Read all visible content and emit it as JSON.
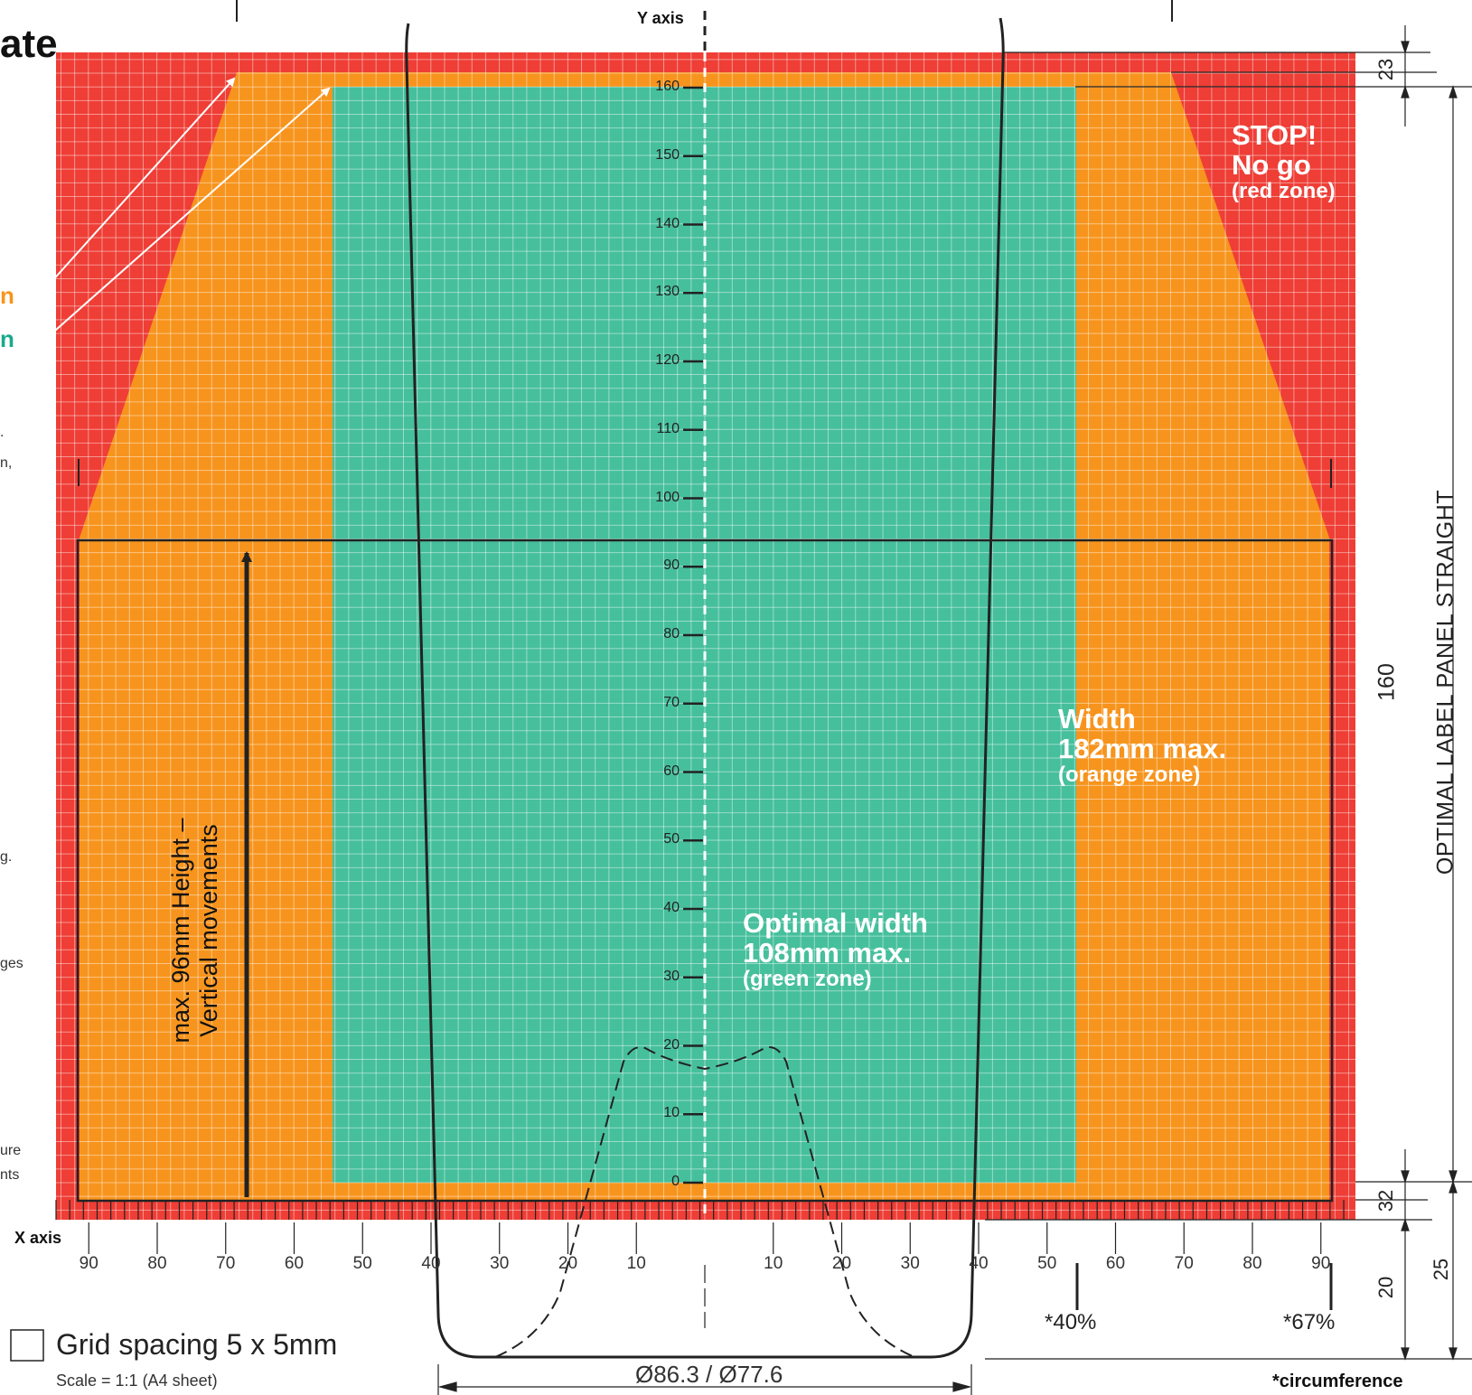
{
  "title_fragment": "ate",
  "left_fragments": [
    {
      "text": "n",
      "color": "#f7941d",
      "bold": true,
      "size": 26
    },
    {
      "text": "n",
      "color": "#1aa98b",
      "bold": true,
      "size": 26
    },
    {
      "text": ".",
      "color": "#333333",
      "bold": false,
      "size": 16
    },
    {
      "text": "n,",
      "color": "#333333",
      "bold": false,
      "size": 16
    },
    {
      "text": "g.",
      "color": "#333333",
      "bold": false,
      "size": 16
    },
    {
      "text": "ges",
      "color": "#333333",
      "bold": false,
      "size": 16
    },
    {
      "text": "ure",
      "color": "#333333",
      "bold": false,
      "size": 16
    },
    {
      "text": "nts",
      "color": "#333333",
      "bold": false,
      "size": 16
    }
  ],
  "y_axis": {
    "label": "Y axis",
    "ticks": [
      "0",
      "10",
      "20",
      "30",
      "40",
      "50",
      "60",
      "70",
      "80",
      "90",
      "100",
      "110",
      "120",
      "130",
      "140",
      "150",
      "160"
    ]
  },
  "x_axis": {
    "label": "X axis",
    "left_ticks": [
      "90",
      "80",
      "70",
      "60",
      "50",
      "40",
      "30",
      "20",
      "10"
    ],
    "right_ticks": [
      "10",
      "20",
      "30",
      "40",
      "50",
      "60",
      "70",
      "80",
      "90"
    ]
  },
  "zones": {
    "red": {
      "line1": "STOP!",
      "line2": "No go",
      "line3": "(red zone)",
      "color": "#ee3e36"
    },
    "orange": {
      "line1": "Width",
      "line2": "182mm max.",
      "line3": "(orange zone)",
      "color": "#f7941d"
    },
    "green": {
      "line1": "Optimal width",
      "line2": "108mm max.",
      "line3": "(green zone)",
      "color": "#46bf9c"
    }
  },
  "height_label": {
    "line1": "max. 96mm Height –",
    "line2": "Vertical movements"
  },
  "right_dimension": {
    "label": "OPTIMAL LABEL PANEL STRAIGHT",
    "value": "160"
  },
  "dimensions": {
    "top": "23",
    "bottom": "32",
    "d20": "20",
    "d25": "25"
  },
  "circumference_marks": {
    "left": "*40%",
    "right": "*67%",
    "footnote": "*circumference"
  },
  "diameter": "Ø86.3 / Ø77.6",
  "legend": {
    "grid": "Grid spacing 5 x 5mm",
    "scale": "Scale = 1:1 (A4 sheet)"
  }
}
